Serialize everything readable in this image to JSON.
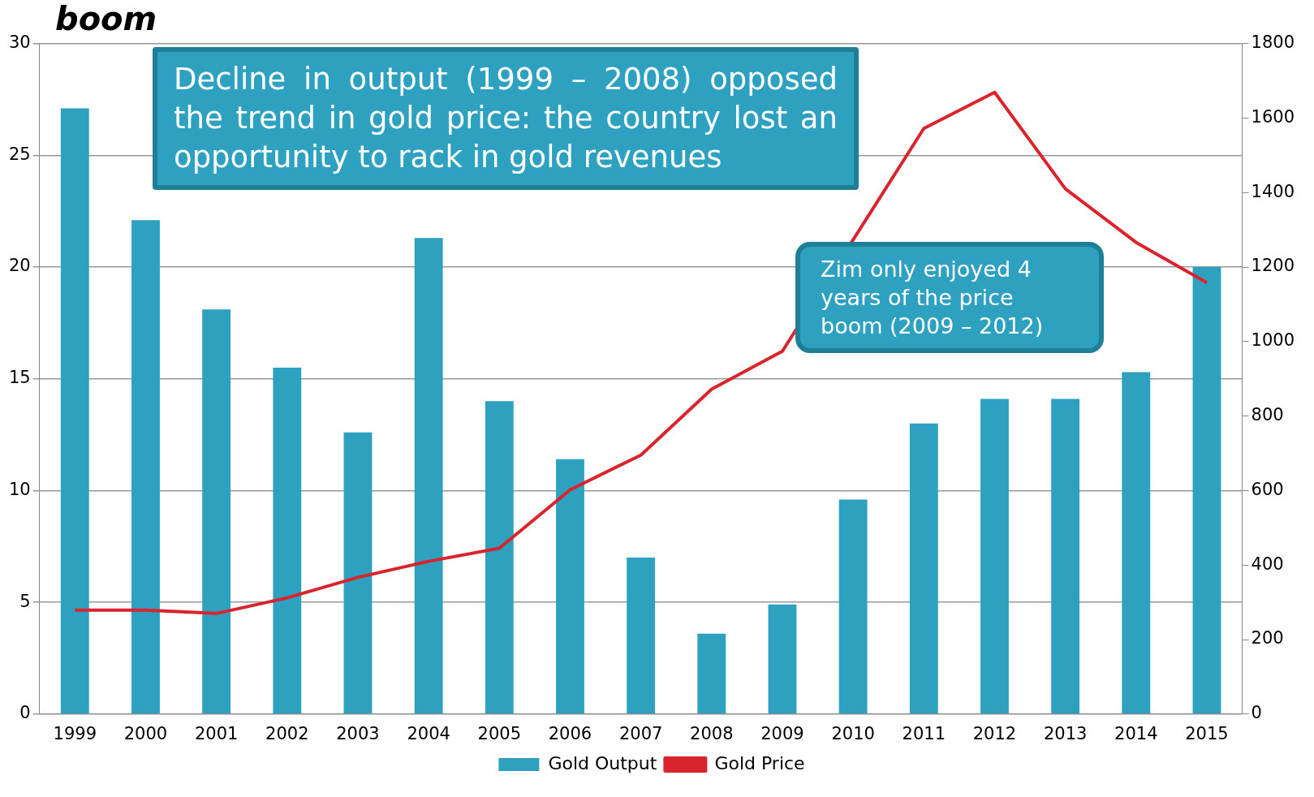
{
  "chart_data": {
    "type": "bar",
    "title": "boom",
    "categories": [
      "1999",
      "2000",
      "2001",
      "2002",
      "2003",
      "2004",
      "2005",
      "2006",
      "2007",
      "2008",
      "2009",
      "2010",
      "2011",
      "2012",
      "2013",
      "2014",
      "2015"
    ],
    "series": [
      {
        "name": "Gold Output",
        "color": "#2ea1c0",
        "values": [
          27.1,
          22.1,
          18.1,
          15.5,
          12.6,
          21.3,
          14.0,
          11.4,
          7.0,
          3.6,
          4.9,
          9.6,
          13.0,
          14.1,
          14.1,
          15.3,
          20.0
        ]
      },
      {
        "name": "Gold Price",
        "type": "line",
        "axis": "y2",
        "color": "#d9232d",
        "values": [
          279,
          279,
          270,
          312,
          367,
          410,
          445,
          602,
          695,
          872,
          974,
          null,
          1572,
          1669,
          1410,
          1266,
          1158
        ]
      }
    ],
    "ylim": [
      0,
      30
    ],
    "yticks": [
      0,
      5,
      10,
      15,
      20,
      25,
      30
    ],
    "y2lim": [
      0,
      1800
    ],
    "y2ticks": [
      0,
      200,
      400,
      600,
      800,
      1000,
      1200,
      1400,
      1600,
      1800
    ],
    "grid": "y",
    "legend": "bottom",
    "marker": "none",
    "annotations": [
      "Decline in output (1999 – 2008) opposed the trend in gold price: the country lost an opportunity to rack in gold revenues",
      "Zim only enjoyed 4 years of  the price boom (2009 – 2012)"
    ]
  }
}
